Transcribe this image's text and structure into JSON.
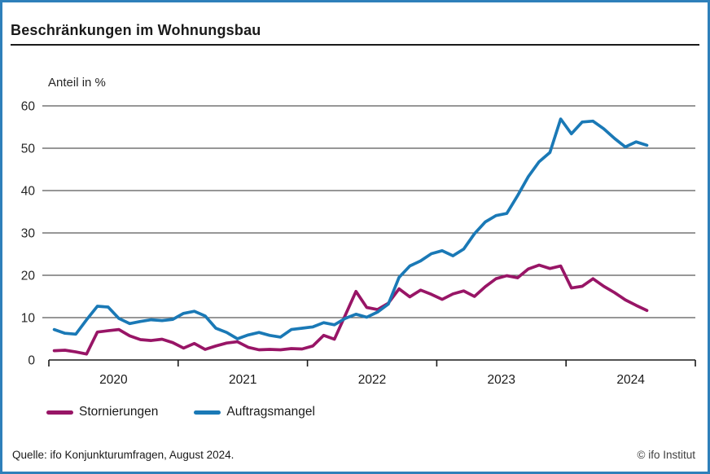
{
  "title": "Beschränkungen im Wohnungsbau",
  "chart_data": {
    "type": "line",
    "title": "Beschränkungen im Wohnungsbau",
    "ylabel": "Anteil in %",
    "xlabel": "",
    "ylim": [
      0,
      60
    ],
    "yticks": [
      0,
      10,
      20,
      30,
      40,
      50,
      60
    ],
    "year_labels": [
      "2020",
      "2021",
      "2022",
      "2023",
      "2024"
    ],
    "x_range": "Jan 2020 - Aug 2024, monthly",
    "grid": "horizontal",
    "legend_position": "bottom",
    "axis_color": "#1a1a1a",
    "grid_color": "#595959",
    "series": [
      {
        "name": "Stornierungen",
        "color": "#981566",
        "values": [
          2.2,
          2.3,
          1.9,
          1.4,
          6.6,
          6.9,
          7.2,
          5.7,
          4.8,
          4.6,
          4.9,
          4.1,
          2.8,
          3.9,
          2.5,
          3.3,
          4.0,
          4.3,
          3.0,
          2.4,
          2.5,
          2.4,
          2.7,
          2.6,
          3.3,
          5.8,
          4.9,
          10.5,
          16.2,
          12.4,
          11.9,
          13.4,
          16.8,
          14.9,
          16.5,
          15.5,
          14.3,
          15.6,
          16.3,
          15.0,
          17.3,
          19.2,
          19.9,
          19.4,
          21.5,
          22.4,
          21.6,
          22.2,
          17.0,
          17.4,
          19.2,
          17.4,
          15.9,
          14.2,
          12.9,
          11.7
        ]
      },
      {
        "name": "Auftragsmangel",
        "color": "#1a79b6",
        "values": [
          7.2,
          6.3,
          6.1,
          9.5,
          12.7,
          12.5,
          9.8,
          8.6,
          9.1,
          9.5,
          9.3,
          9.6,
          11.0,
          11.5,
          10.4,
          7.5,
          6.5,
          5.0,
          5.9,
          6.5,
          5.8,
          5.4,
          7.2,
          7.5,
          7.8,
          8.8,
          8.3,
          9.8,
          10.8,
          10.1,
          11.3,
          13.2,
          19.5,
          22.2,
          23.4,
          25.1,
          25.8,
          24.6,
          26.2,
          29.8,
          32.6,
          34.1,
          34.6,
          38.8,
          43.3,
          46.8,
          49.0,
          56.9,
          53.4,
          56.2,
          56.4,
          54.6,
          52.3,
          50.3,
          51.5,
          50.7
        ]
      }
    ]
  },
  "footer": {
    "source": "Quelle: ifo Konjunkturumfragen, August 2024.",
    "copyright": "© ifo Institut"
  }
}
